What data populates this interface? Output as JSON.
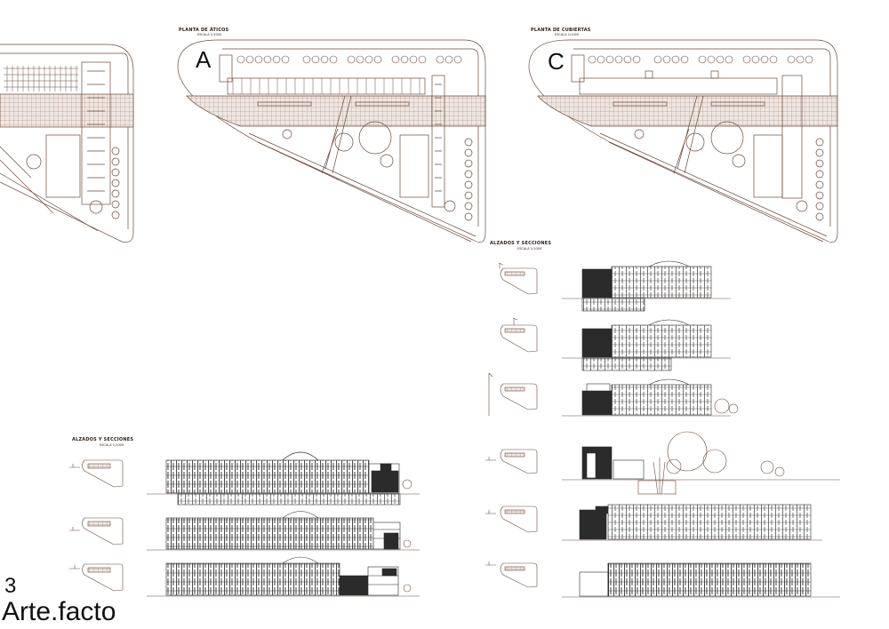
{
  "sheet": {
    "number": "3",
    "brand": "Arte.facto"
  },
  "plans": [
    {
      "letter": "",
      "title": "",
      "scale": ""
    },
    {
      "letter": "A",
      "title": "PLANTA DE ÁTICOS",
      "scale": "ESCALA 1/1000"
    },
    {
      "letter": "C",
      "title": "PLANTA DE CUBIERTAS",
      "scale": "ESCALA 1/1000"
    }
  ],
  "section_groups": [
    {
      "title": "ALZADOS Y SECCIONES",
      "scale": "ESCALA 1/1000"
    },
    {
      "title": "ALZADOS Y SECCIONES",
      "scale": "ESCALA 1/1000"
    }
  ],
  "colors": {
    "line": "#6b4a3c",
    "hatch": "#8a6a5c",
    "road": "#b7a49a",
    "solid": "#2b2b2b"
  }
}
